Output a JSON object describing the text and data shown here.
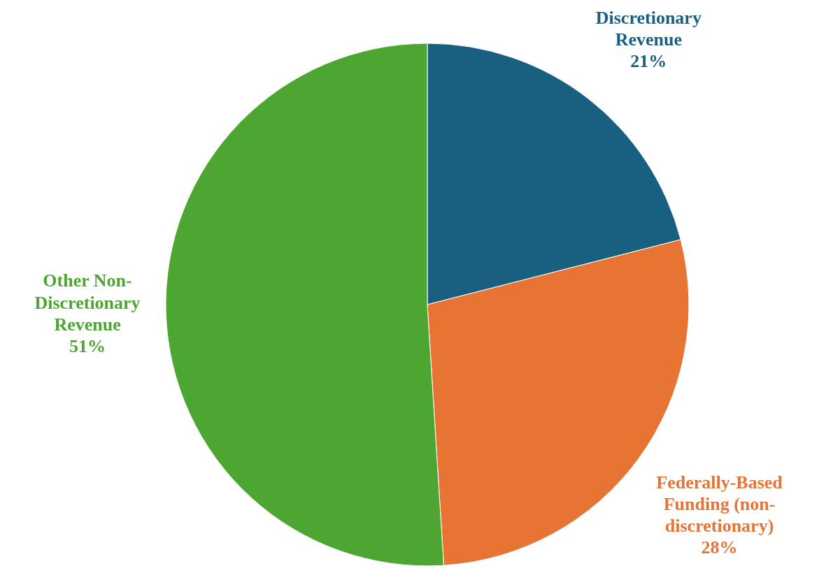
{
  "chart_data": {
    "type": "pie",
    "categories": [
      "Discretionary Revenue",
      "Federally-Based Funding (non-discretionary)",
      "Other Non-Discretionary Revenue"
    ],
    "values": [
      21,
      28,
      51
    ],
    "colors": [
      "#185f80",
      "#e87434",
      "#4ea632"
    ],
    "value_labels": [
      "21%",
      "28%",
      "51%"
    ]
  }
}
